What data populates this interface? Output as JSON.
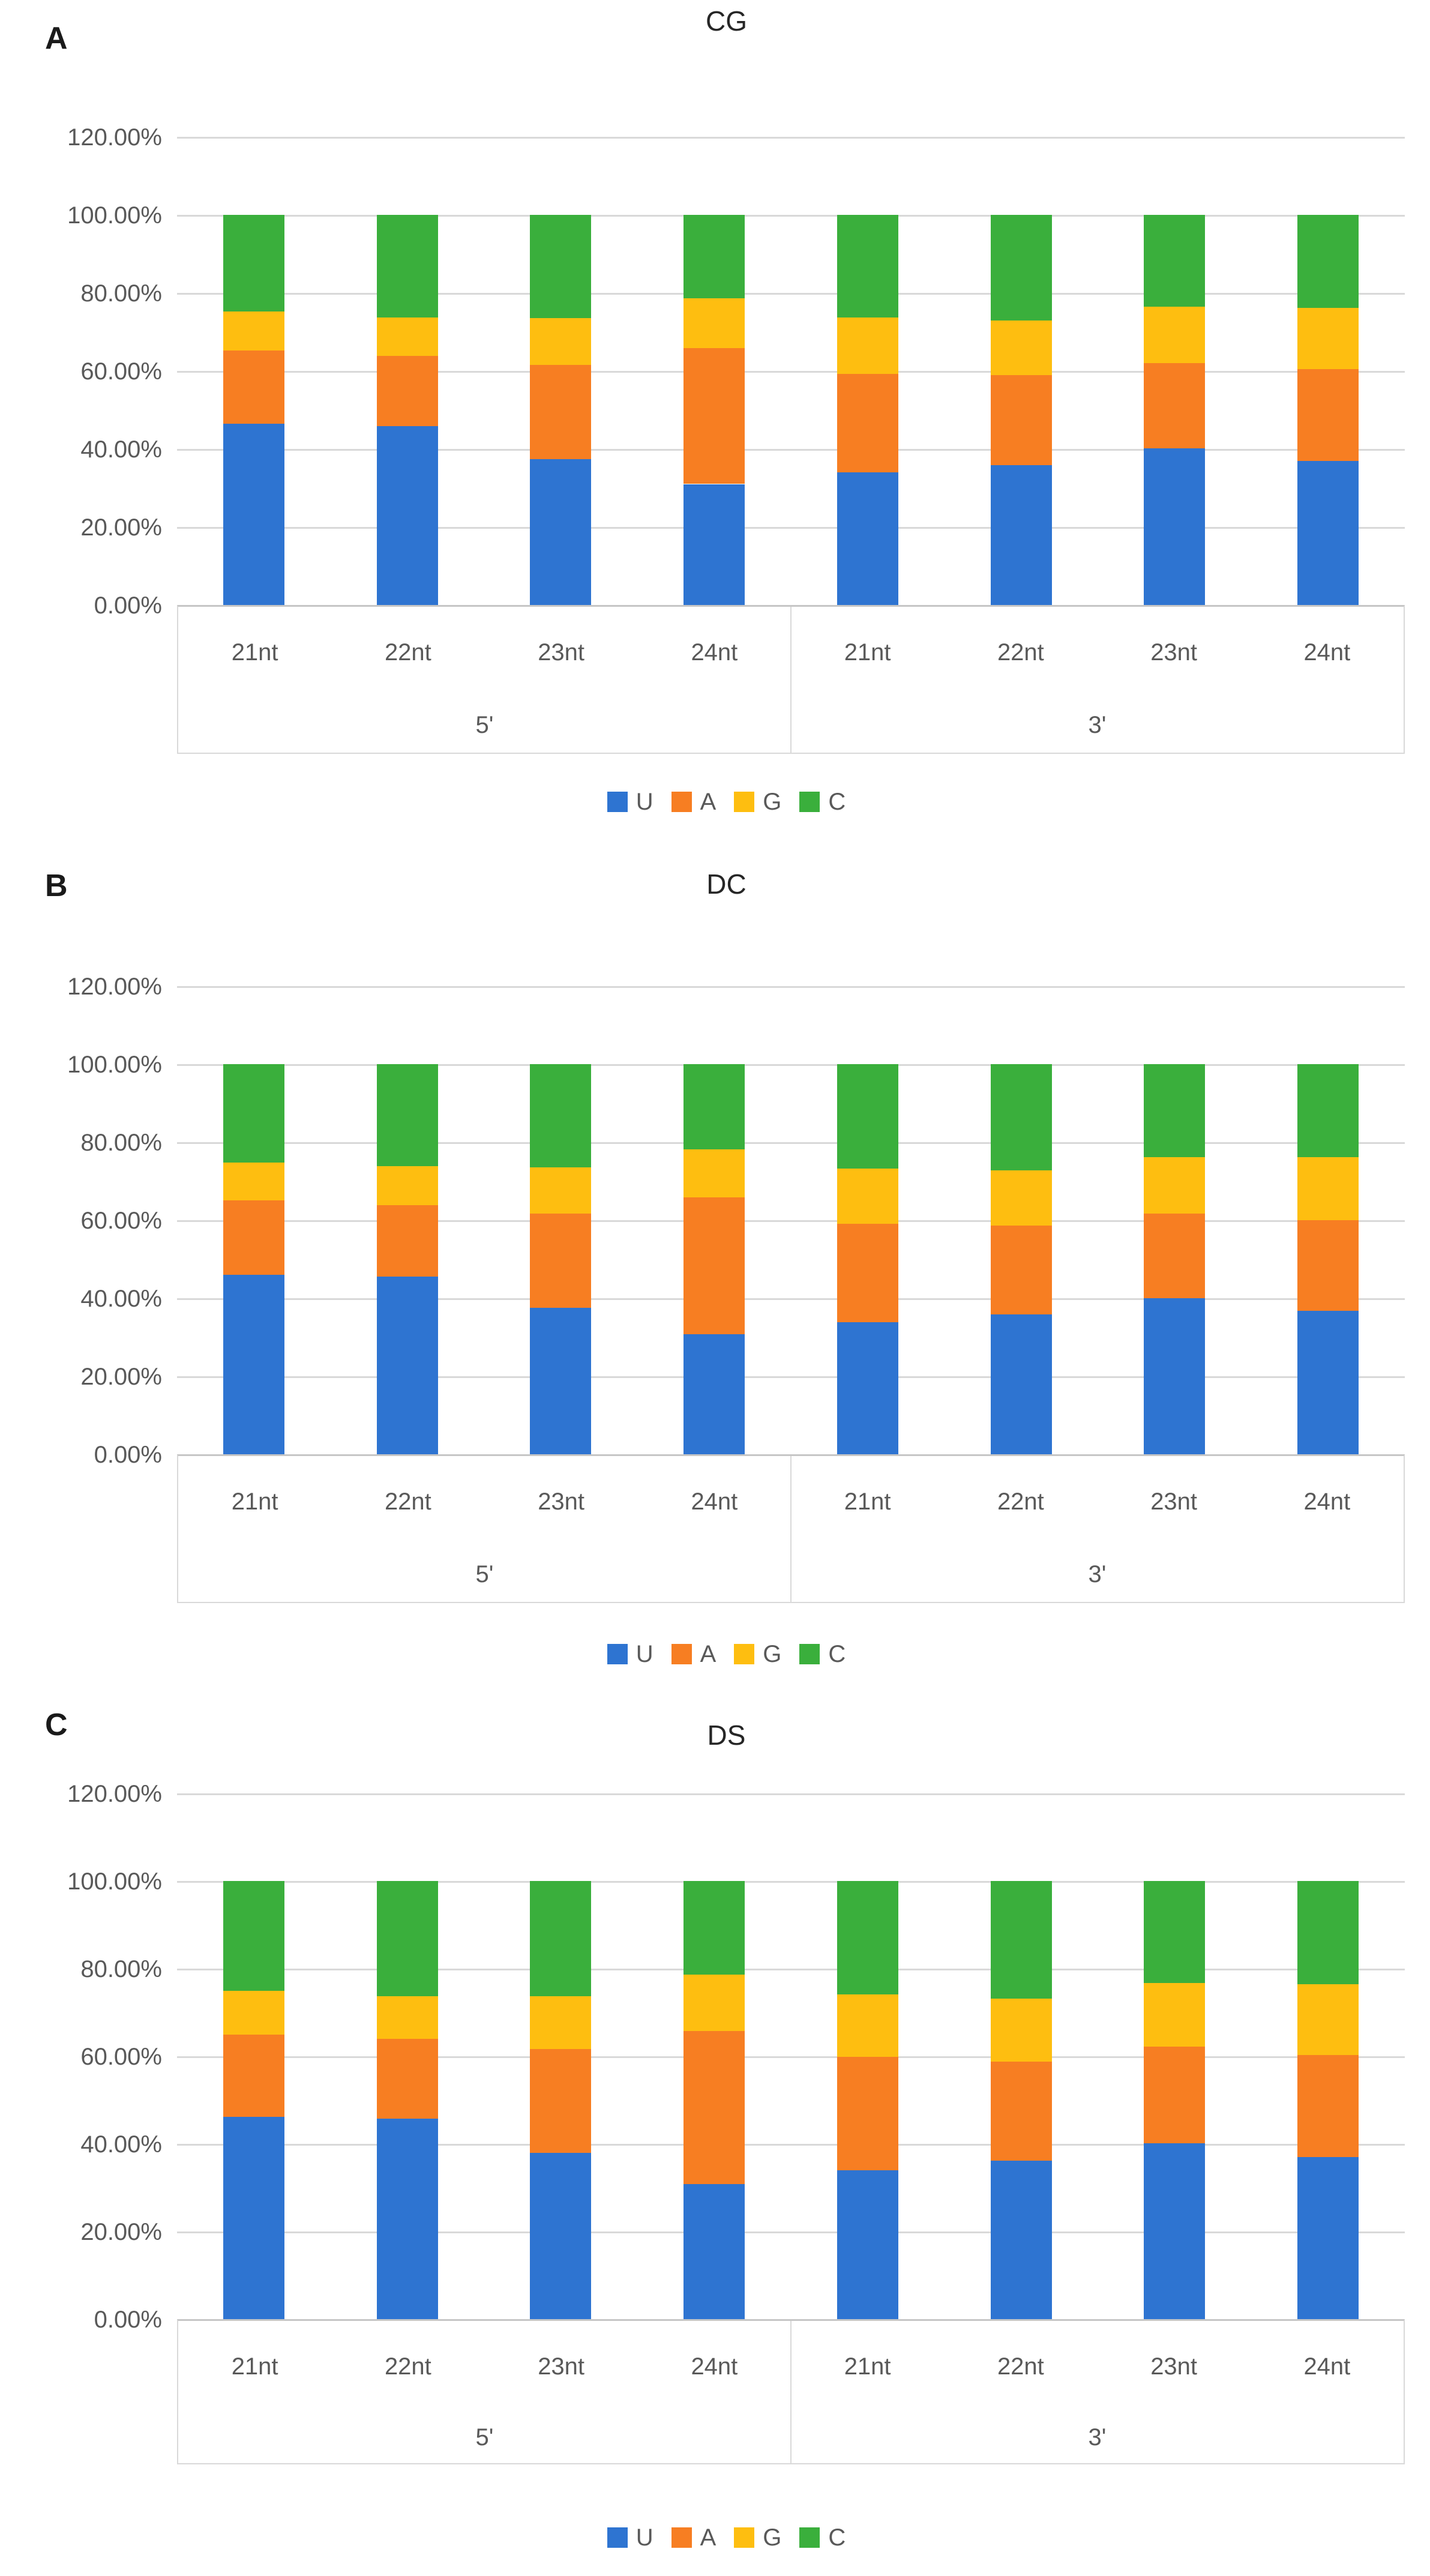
{
  "ui": {
    "background": "#FFFFFF",
    "gridline_color": "#D9D9D9",
    "axis_line_color": "#C6C6C6",
    "band_border_color": "#D9D9D9",
    "tick_label_color": "#595959",
    "category_label_color": "#595959",
    "legend_label_color": "#595959",
    "title_color": "#262626",
    "panel_label_color": "#1A1A1A",
    "series_colors": {
      "U": "#2E74D1",
      "A": "#F77E22",
      "G": "#FEBE10",
      "C": "#3AAF3C"
    }
  },
  "chart_data": [
    {
      "type": "bar",
      "stacked": true,
      "panel_label": "A",
      "title": "CG",
      "xlabel": "",
      "ylabel": "",
      "ylim": [
        0,
        120
      ],
      "grid": true,
      "legend_position": "bottom",
      "y_tick_labels": [
        "120.00%",
        "100.00%",
        "80.00%",
        "60.00%",
        "40.00%",
        "20.00%",
        "0.00%"
      ],
      "group_labels": [
        "5'",
        "3'"
      ],
      "categories": [
        "21nt",
        "22nt",
        "23nt",
        "24nt",
        "21nt",
        "22nt",
        "23nt",
        "24nt"
      ],
      "series": [
        {
          "name": "U",
          "color": "#2E74D1",
          "values": [
            46.4,
            45.9,
            37.4,
            31.0,
            34.0,
            35.9,
            40.2,
            36.9
          ]
        },
        {
          "name": "A",
          "color": "#F77E22",
          "values": [
            18.9,
            18.0,
            24.2,
            34.8,
            25.3,
            23.0,
            21.8,
            23.5
          ]
        },
        {
          "name": "G",
          "color": "#FEBE10",
          "values": [
            9.9,
            9.8,
            12.0,
            12.8,
            14.4,
            14.1,
            14.4,
            15.8
          ]
        },
        {
          "name": "C",
          "color": "#3AAF3C",
          "values": [
            24.8,
            26.3,
            26.4,
            21.4,
            26.3,
            27.0,
            23.6,
            23.8
          ]
        }
      ]
    },
    {
      "type": "bar",
      "stacked": true,
      "panel_label": "B",
      "title": "DC",
      "xlabel": "",
      "ylabel": "",
      "ylim": [
        0,
        120
      ],
      "grid": true,
      "legend_position": "bottom",
      "y_tick_labels": [
        "120.00%",
        "100.00%",
        "80.00%",
        "60.00%",
        "40.00%",
        "20.00%",
        "0.00%"
      ],
      "group_labels": [
        "5'",
        "3'"
      ],
      "categories": [
        "21nt",
        "22nt",
        "23nt",
        "24nt",
        "21nt",
        "22nt",
        "23nt",
        "24nt"
      ],
      "series": [
        {
          "name": "U",
          "color": "#2E74D1",
          "values": [
            46.0,
            45.6,
            37.5,
            30.8,
            33.8,
            35.9,
            40.0,
            36.8
          ]
        },
        {
          "name": "A",
          "color": "#F77E22",
          "values": [
            19.1,
            18.2,
            24.2,
            35.1,
            25.3,
            22.7,
            21.7,
            23.2
          ]
        },
        {
          "name": "G",
          "color": "#FEBE10",
          "values": [
            9.6,
            10.0,
            11.8,
            12.2,
            14.2,
            14.2,
            14.4,
            16.2
          ]
        },
        {
          "name": "C",
          "color": "#3AAF3C",
          "values": [
            25.3,
            26.2,
            26.5,
            21.9,
            26.7,
            27.2,
            23.9,
            23.8
          ]
        }
      ]
    },
    {
      "type": "bar",
      "stacked": true,
      "panel_label": "C",
      "title": "DS",
      "xlabel": "",
      "ylabel": "",
      "ylim": [
        0,
        120
      ],
      "grid": true,
      "legend_position": "bottom",
      "y_tick_labels": [
        "120.00%",
        "100.00%",
        "80.00%",
        "60.00%",
        "40.00%",
        "20.00%",
        "0.00%"
      ],
      "group_labels": [
        "5'",
        "3'"
      ],
      "categories": [
        "21nt",
        "22nt",
        "23nt",
        "24nt",
        "21nt",
        "22nt",
        "23nt",
        "24nt"
      ],
      "series": [
        {
          "name": "U",
          "color": "#2E74D1",
          "values": [
            46.1,
            45.8,
            38.0,
            30.8,
            34.0,
            36.1,
            40.2,
            37.0
          ]
        },
        {
          "name": "A",
          "color": "#F77E22",
          "values": [
            18.9,
            18.2,
            23.7,
            34.9,
            25.8,
            22.7,
            22.0,
            23.3
          ]
        },
        {
          "name": "G",
          "color": "#FEBE10",
          "values": [
            10.0,
            9.7,
            12.0,
            12.9,
            14.3,
            14.3,
            14.5,
            16.2
          ]
        },
        {
          "name": "C",
          "color": "#3AAF3C",
          "values": [
            25.0,
            26.3,
            26.3,
            21.4,
            25.9,
            26.9,
            23.3,
            23.5
          ]
        }
      ]
    }
  ]
}
